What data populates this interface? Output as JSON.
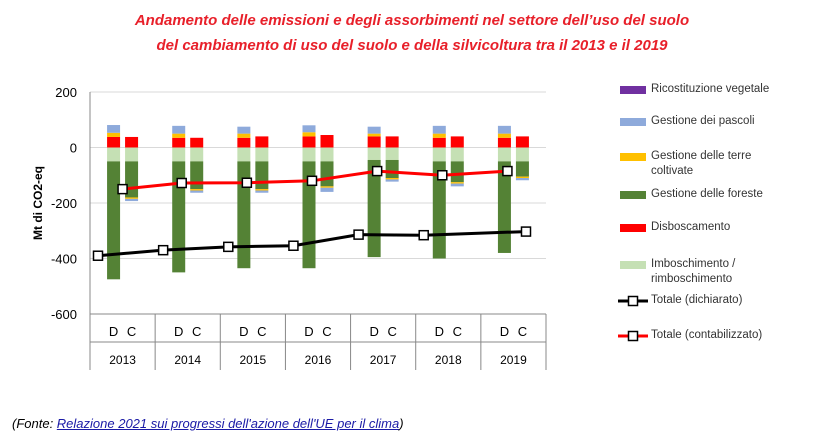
{
  "title_line1": "Andamento delle emissioni e degli assorbimenti nel settore dell’uso del suolo",
  "title_line2": "del cambiamento di uso del suolo e della silvicoltura tra il 2013 e il 2019",
  "source": {
    "prefix": "(Fonte: ",
    "link_text": "Relazione 2021 sui progressi dell'azione dell'UE per il clima",
    "suffix": ")"
  },
  "colors": {
    "ricostituzione": "#7030a0",
    "pascoli": "#8eaadb",
    "terre_coltivate": "#ffc000",
    "foreste": "#548235",
    "disboscamento": "#ff0000",
    "imboschimento": "#c5e0b4",
    "totale_dichiarato": "#000000",
    "totale_contabilizzato": "#ff0000"
  },
  "chart_data": {
    "type": "bar",
    "ylabel": "Mt di CO2-eq",
    "ylim": [
      -600,
      200
    ],
    "yticks": [
      200,
      0,
      -200,
      -400,
      -600
    ],
    "years": [
      "2013",
      "2014",
      "2015",
      "2016",
      "2017",
      "2018",
      "2019"
    ],
    "bar_letters": [
      "D",
      "C"
    ],
    "stack_series": [
      {
        "name": "Ricostituzione vegetale",
        "color_key": "ricostituzione"
      },
      {
        "name": "Gestione dei pascoli",
        "color_key": "pascoli"
      },
      {
        "name": "Gestione delle terre coltivate",
        "color_key": "terre_coltivate"
      },
      {
        "name": "Gestione delle foreste",
        "color_key": "foreste"
      },
      {
        "name": "Disboscamento",
        "color_key": "disboscamento"
      },
      {
        "name": "Imboschimento / rimboschimento",
        "color_key": "imboschimento"
      }
    ],
    "bars": [
      {
        "year": "2013",
        "type": "D",
        "disboscamento": 38,
        "terre_coltivate": 15,
        "pascoli": 28,
        "imboschimento": -50,
        "foreste": -425
      },
      {
        "year": "2013",
        "type": "C",
        "disboscamento": 38,
        "terre_coltivate": 0,
        "pascoli": 0,
        "imboschimento": -50,
        "foreste": -130,
        "terre_below": -5,
        "pascoli_below": -8
      },
      {
        "year": "2014",
        "type": "D",
        "disboscamento": 35,
        "terre_coltivate": 15,
        "pascoli": 28,
        "imboschimento": -50,
        "foreste": -400
      },
      {
        "year": "2014",
        "type": "C",
        "disboscamento": 35,
        "terre_coltivate": 0,
        "pascoli": 0,
        "imboschimento": -50,
        "foreste": -100,
        "terre_below": -5,
        "pascoli_below": -8
      },
      {
        "year": "2015",
        "type": "D",
        "disboscamento": 35,
        "terre_coltivate": 15,
        "pascoli": 25,
        "imboschimento": -50,
        "foreste": -385
      },
      {
        "year": "2015",
        "type": "C",
        "disboscamento": 40,
        "terre_coltivate": 0,
        "pascoli": 0,
        "imboschimento": -50,
        "foreste": -100,
        "terre_below": -5,
        "pascoli_below": -8
      },
      {
        "year": "2016",
        "type": "D",
        "disboscamento": 40,
        "terre_coltivate": 15,
        "pascoli": 25,
        "imboschimento": -50,
        "foreste": -385
      },
      {
        "year": "2016",
        "type": "C",
        "disboscamento": 45,
        "terre_coltivate": 0,
        "pascoli": 0,
        "imboschimento": -50,
        "foreste": -90,
        "terre_below": -5,
        "pascoli_below": -15
      },
      {
        "year": "2017",
        "type": "D",
        "disboscamento": 40,
        "terre_coltivate": 10,
        "pascoli": 25,
        "imboschimento": -45,
        "foreste": -350
      },
      {
        "year": "2017",
        "type": "C",
        "disboscamento": 40,
        "terre_coltivate": 0,
        "pascoli": 0,
        "imboschimento": -45,
        "foreste": -65,
        "terre_below": -5,
        "pascoli_below": -8
      },
      {
        "year": "2018",
        "type": "D",
        "disboscamento": 35,
        "terre_coltivate": 15,
        "pascoli": 28,
        "imboschimento": -50,
        "foreste": -350
      },
      {
        "year": "2018",
        "type": "C",
        "disboscamento": 40,
        "terre_coltivate": 0,
        "pascoli": 0,
        "imboschimento": -50,
        "foreste": -75,
        "terre_below": -5,
        "pascoli_below": -10
      },
      {
        "year": "2019",
        "type": "D",
        "disboscamento": 35,
        "terre_coltivate": 15,
        "pascoli": 28,
        "imboschimento": -50,
        "foreste": -330
      },
      {
        "year": "2019",
        "type": "C",
        "disboscamento": 40,
        "terre_coltivate": 0,
        "pascoli": 0,
        "imboschimento": -50,
        "foreste": -55,
        "terre_below": -5,
        "pascoli_below": -8
      }
    ],
    "lines": [
      {
        "name": "Totale (dichiarato)",
        "color_key": "totale_dichiarato",
        "values": [
          -390,
          -370,
          -358,
          -354,
          -314,
          -316,
          -303
        ]
      },
      {
        "name": "Totale (contabilizzato)",
        "color_key": "totale_contabilizzato",
        "values": [
          -150,
          -128,
          -127,
          -120,
          -85,
          -100,
          -85
        ]
      }
    ],
    "legend": [
      {
        "label": "Ricostituzione vegetale",
        "kind": "box",
        "color_key": "ricostituzione"
      },
      {
        "label": "Gestione dei pascoli",
        "kind": "box",
        "color_key": "pascoli"
      },
      {
        "label": "Gestione delle terre coltivate",
        "kind": "box",
        "color_key": "terre_coltivate"
      },
      {
        "label": "Gestione delle foreste",
        "kind": "box",
        "color_key": "foreste"
      },
      {
        "label": "Disboscamento",
        "kind": "box",
        "color_key": "disboscamento"
      },
      {
        "label": "Imboschimento / rimboschimento",
        "kind": "box",
        "color_key": "imboschimento"
      },
      {
        "label": "Totale (dichiarato)",
        "kind": "line",
        "color_key": "totale_dichiarato"
      },
      {
        "label": "Totale (contabilizzato)",
        "kind": "line",
        "color_key": "totale_contabilizzato"
      }
    ]
  }
}
